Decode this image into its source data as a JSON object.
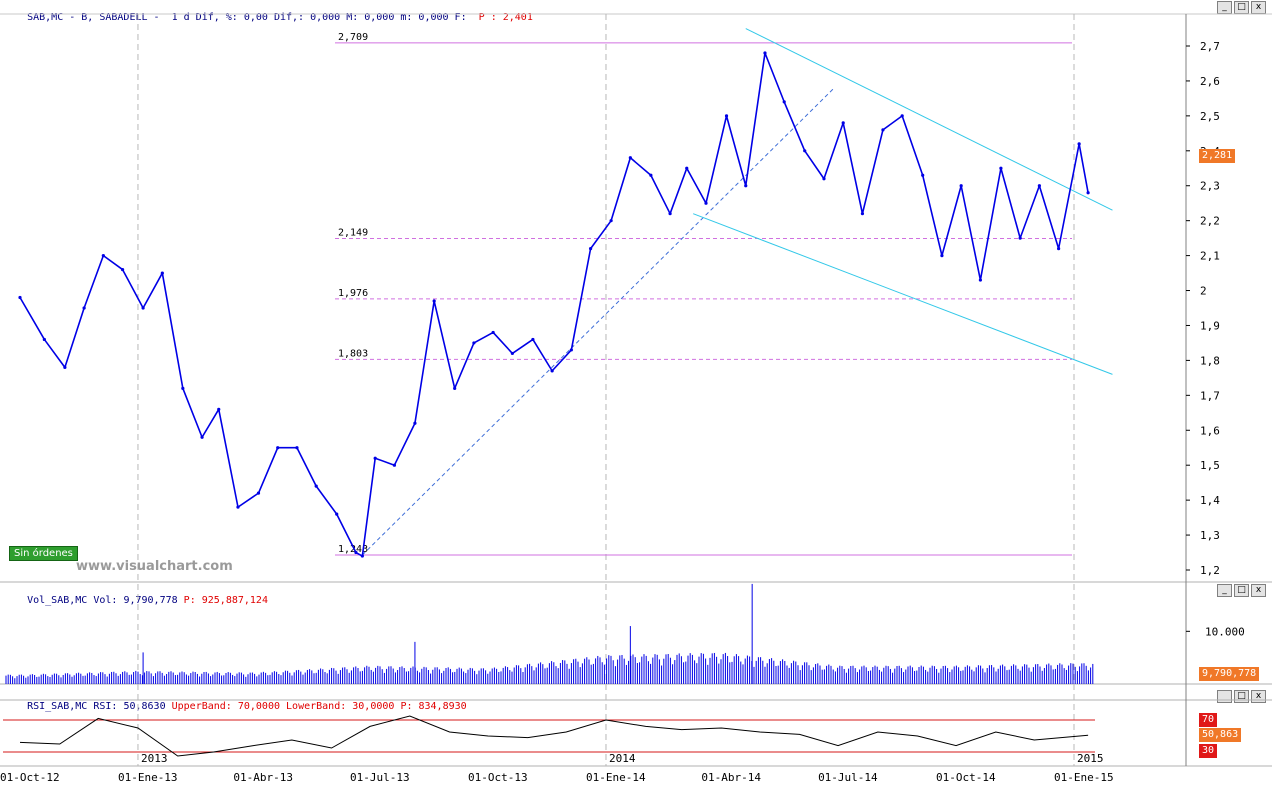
{
  "price_pane": {
    "header": {
      "symbol": "SAB,MC - B, SABADELL -",
      "period": "1 d Dif, %: 0,00 Dif,: 0,000 M: 0,000 m: 0,000 F:",
      "last_label": "P : 2,401"
    },
    "badge": "2,281",
    "sin_ordenes": "Sin órdenes",
    "watermark": "www.visualchart.com",
    "buttons": [
      "_",
      "□",
      "x"
    ]
  },
  "volume_pane": {
    "header": {
      "name": "Vol_SAB,MC",
      "value": "Vol: 9,790,778",
      "last_label": "P: 925,887,124"
    },
    "badge": "9,790,778",
    "buttons": [
      "_",
      "□",
      "x"
    ]
  },
  "rsi_pane": {
    "header": {
      "name": "RSI_SAB,MC",
      "value": "RSI: 50,8630",
      "upper": "UpperBand: 70,0000",
      "lower": "LowerBand: 30,0000",
      "last_label": "P: 834,8930"
    },
    "badges": {
      "upper": "70",
      "value": "50,863",
      "lower": "30"
    },
    "buttons": [
      "_",
      "□",
      "x"
    ]
  },
  "colors": {
    "price": "#0000e6",
    "trendline": "#33c8e8",
    "fib": "#d070e0",
    "rsi_band": "#d41a1a",
    "badge_orange": "#f07828",
    "badge_red": "#e01818",
    "header_red": "#e00000"
  },
  "chart_data": [
    {
      "type": "line",
      "name": "price",
      "y_scale": "linear",
      "ylim": [
        1.2,
        2.72
      ],
      "y_ticks": [
        "2,7",
        "2,6",
        "2,5",
        "2,4",
        "2,3",
        "2,2",
        "2,1",
        "2",
        "1,9",
        "1,8",
        "1,7",
        "1,6",
        "1,5",
        "1,4",
        "1,3",
        "1,2"
      ],
      "x_ticks": [
        "01-Oct-12",
        "01-Ene-13",
        "01-Abr-13",
        "01-Jul-13",
        "01-Oct-13",
        "01-Ene-14",
        "01-Abr-14",
        "01-Jul-14",
        "01-Oct-14",
        "01-Ene-15"
      ],
      "year_labels": [
        "2013",
        "2014",
        "2015"
      ],
      "x": [
        "2012-10-01",
        "2012-10-20",
        "2012-11-05",
        "2012-11-20",
        "2012-12-05",
        "2012-12-20",
        "2013-01-05",
        "2013-01-20",
        "2013-02-05",
        "2013-02-20",
        "2013-03-05",
        "2013-03-20",
        "2013-04-05",
        "2013-04-20",
        "2013-05-05",
        "2013-05-20",
        "2013-06-05",
        "2013-06-20",
        "2013-06-25",
        "2013-07-05",
        "2013-07-20",
        "2013-08-05",
        "2013-08-20",
        "2013-09-05",
        "2013-09-20",
        "2013-10-05",
        "2013-10-20",
        "2013-11-05",
        "2013-11-20",
        "2013-12-05",
        "2013-12-20",
        "2014-01-05",
        "2014-01-20",
        "2014-02-05",
        "2014-02-20",
        "2014-03-05",
        "2014-03-20",
        "2014-04-05",
        "2014-04-20",
        "2014-05-05",
        "2014-05-20",
        "2014-06-05",
        "2014-06-20",
        "2014-07-05",
        "2014-07-20",
        "2014-08-05",
        "2014-08-20",
        "2014-09-05",
        "2014-09-20",
        "2014-10-05",
        "2014-10-20",
        "2014-11-05",
        "2014-11-20",
        "2014-12-05",
        "2014-12-20",
        "2015-01-05",
        "2015-01-12"
      ],
      "values": [
        1.98,
        1.86,
        1.78,
        1.95,
        2.1,
        2.06,
        1.95,
        2.05,
        1.72,
        1.58,
        1.66,
        1.38,
        1.42,
        1.55,
        1.55,
        1.44,
        1.36,
        1.25,
        1.24,
        1.52,
        1.5,
        1.62,
        1.97,
        1.72,
        1.85,
        1.88,
        1.82,
        1.86,
        1.77,
        1.83,
        2.12,
        2.2,
        2.38,
        2.33,
        2.22,
        2.35,
        2.25,
        2.5,
        2.3,
        2.68,
        2.54,
        2.4,
        2.32,
        2.48,
        2.22,
        2.46,
        2.5,
        2.33,
        2.1,
        2.3,
        2.03,
        2.35,
        2.15,
        2.3,
        2.12,
        2.42,
        2.28
      ],
      "horizontal_levels": [
        {
          "label": "2,709",
          "value": 2.709
        },
        {
          "label": "2,149",
          "value": 2.149
        },
        {
          "label": "1,976",
          "value": 1.976
        },
        {
          "label": "1,803",
          "value": 1.803
        },
        {
          "label": "1,243",
          "value": 1.243
        }
      ],
      "trendlines": [
        {
          "style": "dashed",
          "from": [
            "2013-06-25",
            1.243
          ],
          "to": [
            "2014-06-28",
            2.58
          ]
        },
        {
          "style": "solid",
          "from": [
            "2014-04-20",
            2.75
          ],
          "to": [
            "2015-01-31",
            2.23
          ]
        },
        {
          "style": "solid",
          "from": [
            "2014-03-10",
            2.22
          ],
          "to": [
            "2015-01-31",
            1.76
          ]
        }
      ]
    },
    {
      "type": "bar",
      "name": "volume",
      "y_ticks": [
        "10.000"
      ],
      "ylim_thousands": [
        0,
        16000
      ],
      "x": [
        "2012-10-01",
        "2013-01-01",
        "2013-04-01",
        "2013-07-01",
        "2013-10-01",
        "2014-01-01",
        "2014-04-01",
        "2014-07-01",
        "2014-10-01",
        "2015-01-01"
      ],
      "values_thousands": [
        1800,
        2500,
        2200,
        3500,
        3000,
        5500,
        6000,
        3500,
        3500,
        4000
      ],
      "peaks_thousands": [
        {
          "x": "2013-01-05",
          "value": 6000
        },
        {
          "x": "2013-08-05",
          "value": 8000
        },
        {
          "x": "2014-01-20",
          "value": 11000
        },
        {
          "x": "2014-04-25",
          "value": 19000
        }
      ]
    },
    {
      "type": "line",
      "name": "RSI",
      "ylim": [
        0,
        100
      ],
      "bands": [
        70,
        30
      ],
      "x": [
        "2012-10-01",
        "2012-11-01",
        "2012-12-01",
        "2013-01-01",
        "2013-02-01",
        "2013-03-01",
        "2013-04-01",
        "2013-05-01",
        "2013-06-01",
        "2013-07-01",
        "2013-08-01",
        "2013-09-01",
        "2013-10-01",
        "2013-11-01",
        "2013-12-01",
        "2014-01-01",
        "2014-02-01",
        "2014-03-01",
        "2014-04-01",
        "2014-05-01",
        "2014-06-01",
        "2014-07-01",
        "2014-08-01",
        "2014-09-01",
        "2014-10-01",
        "2014-11-01",
        "2014-12-01",
        "2015-01-12"
      ],
      "values": [
        42,
        40,
        72,
        60,
        25,
        30,
        38,
        45,
        35,
        62,
        75,
        55,
        50,
        48,
        55,
        70,
        62,
        58,
        60,
        55,
        52,
        38,
        55,
        50,
        38,
        55,
        45,
        51
      ]
    }
  ]
}
